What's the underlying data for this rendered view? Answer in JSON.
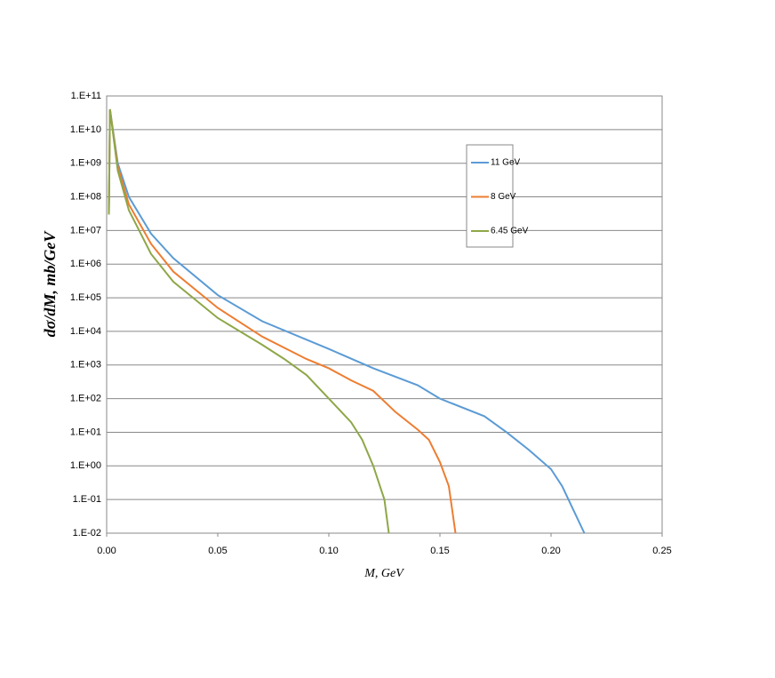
{
  "chart_data": {
    "type": "line",
    "xlabel": "M, GeV",
    "ylabel": "dσ/dM, mb/GeV",
    "yscale": "log",
    "grid": true,
    "legend": "upper right",
    "xlim": [
      0,
      0.25
    ],
    "xticks": [
      {
        "value": 0,
        "label": "0.00"
      },
      {
        "value": 0.05,
        "label": "0.05"
      },
      {
        "value": 0.1,
        "label": "0.10"
      },
      {
        "value": 0.15,
        "label": "0.15"
      },
      {
        "value": 0.2,
        "label": "0.20"
      },
      {
        "value": 0.25,
        "label": "0.25"
      }
    ],
    "ylim": [
      0.01,
      100000000000
    ],
    "yticks": [
      {
        "value": 0.01,
        "label": "1.E-02"
      },
      {
        "value": 0.1,
        "label": "1.E-01"
      },
      {
        "value": 1,
        "label": "1.E+00"
      },
      {
        "value": 10,
        "label": "1.E+01"
      },
      {
        "value": 100,
        "label": "1.E+02"
      },
      {
        "value": 1000,
        "label": "1.E+03"
      },
      {
        "value": 10000,
        "label": "1.E+04"
      },
      {
        "value": 100000,
        "label": "1.E+05"
      },
      {
        "value": 1000000,
        "label": "1.E+06"
      },
      {
        "value": 10000000,
        "label": "1.E+07"
      },
      {
        "value": 100000000,
        "label": "1.E+08"
      },
      {
        "value": 1000000000,
        "label": "1.E+09"
      },
      {
        "value": 10000000000,
        "label": "1.E+10"
      },
      {
        "value": 100000000000,
        "label": "1.E+11"
      }
    ],
    "series": [
      {
        "name": "11 GeV",
        "color": "#5b9bd5",
        "x": [
          0.001,
          0.0015,
          0.005,
          0.01,
          0.02,
          0.03,
          0.05,
          0.07,
          0.1,
          0.12,
          0.14,
          0.15,
          0.17,
          0.18,
          0.19,
          0.2,
          0.205,
          0.21,
          0.215
        ],
        "values": [
          30000000,
          40000000000,
          1000000000,
          100000000,
          8000000,
          1500000,
          120000,
          20000,
          3000,
          800,
          250,
          100,
          30,
          10,
          3,
          0.8,
          0.25,
          0.05,
          0.01
        ]
      },
      {
        "name": "8 GeV",
        "color": "#ed7d31",
        "x": [
          0.001,
          0.0015,
          0.005,
          0.01,
          0.02,
          0.03,
          0.05,
          0.07,
          0.09,
          0.1,
          0.11,
          0.12,
          0.13,
          0.14,
          0.145,
          0.15,
          0.154,
          0.157
        ],
        "values": [
          30000000,
          40000000000,
          800000000,
          60000000,
          4000000,
          600000,
          50000,
          7000,
          1500,
          800,
          350,
          170,
          40,
          12,
          6,
          1.3,
          0.25,
          0.01
        ]
      },
      {
        "name": "6.45 GeV",
        "color": "#8ea748",
        "x": [
          0.001,
          0.0015,
          0.005,
          0.01,
          0.02,
          0.03,
          0.05,
          0.07,
          0.08,
          0.09,
          0.1,
          0.11,
          0.115,
          0.12,
          0.125,
          0.127
        ],
        "values": [
          30000000,
          40000000000,
          600000000,
          40000000,
          2000000,
          300000,
          25000,
          4000,
          1500,
          500,
          100,
          20,
          6,
          1,
          0.1,
          0.01
        ]
      }
    ]
  }
}
